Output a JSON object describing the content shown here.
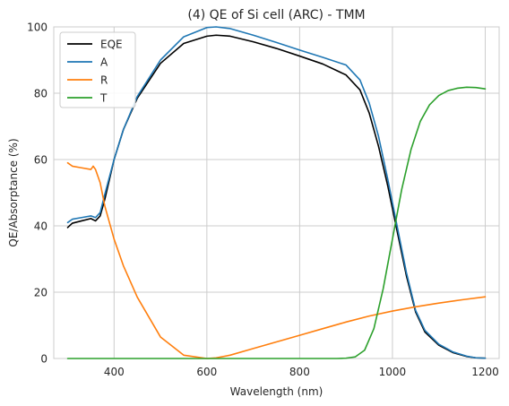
{
  "chart_data": {
    "type": "line",
    "title": "(4) QE of Si cell (ARC) - TMM",
    "xlabel": "Wavelength (nm)",
    "ylabel": "QE/Absorptance (%)",
    "xlim": [
      270,
      1230
    ],
    "ylim": [
      0,
      100
    ],
    "xticks": [
      400,
      600,
      800,
      1000,
      1200
    ],
    "yticks": [
      0,
      20,
      40,
      60,
      80,
      100
    ],
    "xtick_labels": [
      "400",
      "600",
      "800",
      "1000",
      "1200"
    ],
    "ytick_labels": [
      "0",
      "20",
      "40",
      "60",
      "80",
      "100"
    ],
    "grid": true,
    "legend_position": "top-left",
    "series": [
      {
        "name": "EQE",
        "color": "#000000",
        "x": [
          300,
          310,
          330,
          350,
          360,
          370,
          380,
          400,
          420,
          450,
          500,
          550,
          600,
          620,
          650,
          700,
          750,
          800,
          850,
          900,
          930,
          950,
          970,
          990,
          1010,
          1030,
          1050,
          1070,
          1100,
          1130,
          1160,
          1180,
          1200
        ],
        "y": [
          39.5,
          40.8,
          41.5,
          42.2,
          41.5,
          43.0,
          48.0,
          60.0,
          69.0,
          78.5,
          89.0,
          95.0,
          97.2,
          97.5,
          97.2,
          95.5,
          93.5,
          91.2,
          88.8,
          85.5,
          81.0,
          74.0,
          64.0,
          52.0,
          38.5,
          25.0,
          14.0,
          8.0,
          4.0,
          1.8,
          0.6,
          0.2,
          0.1
        ]
      },
      {
        "name": "A",
        "color": "#1f77b4",
        "x": [
          300,
          310,
          330,
          350,
          360,
          370,
          380,
          400,
          420,
          450,
          500,
          550,
          600,
          620,
          650,
          700,
          750,
          800,
          850,
          900,
          930,
          950,
          970,
          990,
          1010,
          1030,
          1050,
          1070,
          1100,
          1130,
          1160,
          1180,
          1200
        ],
        "y": [
          41.0,
          42.0,
          42.5,
          43.0,
          42.5,
          44.0,
          49.5,
          60.0,
          69.0,
          79.0,
          90.0,
          97.0,
          99.8,
          100.0,
          99.5,
          97.5,
          95.3,
          93.0,
          90.8,
          88.5,
          84.0,
          77.0,
          67.0,
          54.0,
          40.0,
          26.0,
          14.5,
          8.5,
          4.3,
          2.0,
          0.7,
          0.2,
          0.1
        ]
      },
      {
        "name": "R",
        "color": "#ff7f0e",
        "x": [
          300,
          310,
          330,
          350,
          355,
          360,
          370,
          380,
          400,
          420,
          450,
          500,
          550,
          600,
          620,
          650,
          700,
          750,
          800,
          850,
          900,
          950,
          1000,
          1050,
          1100,
          1150,
          1200
        ],
        "y": [
          59.0,
          58.0,
          57.5,
          57.0,
          58.0,
          57.0,
          53.0,
          46.0,
          36.0,
          28.0,
          18.5,
          6.5,
          1.0,
          0.0,
          0.2,
          1.0,
          3.0,
          5.0,
          7.0,
          9.0,
          11.0,
          12.8,
          14.3,
          15.6,
          16.7,
          17.7,
          18.6
        ]
      },
      {
        "name": "T",
        "color": "#2ca02c",
        "x": [
          300,
          400,
          500,
          600,
          700,
          800,
          880,
          900,
          920,
          940,
          960,
          980,
          1000,
          1020,
          1040,
          1060,
          1080,
          1100,
          1120,
          1140,
          1160,
          1180,
          1200
        ],
        "y": [
          0,
          0,
          0,
          0,
          0,
          0,
          0,
          0.1,
          0.5,
          2.5,
          9.0,
          21.0,
          36.0,
          51.0,
          63.0,
          71.5,
          76.5,
          79.3,
          80.8,
          81.5,
          81.8,
          81.7,
          81.3
        ]
      }
    ]
  }
}
